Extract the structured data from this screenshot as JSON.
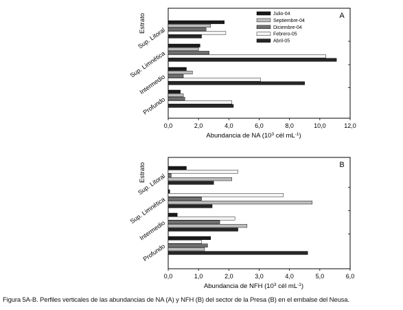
{
  "charts": [
    {
      "type": "bar",
      "orientation": "horizontal",
      "panel_label": "A",
      "y_axis_title": "Estrato",
      "xlabel_main": "Abundancia de NA (10",
      "xlabel_sup": "3",
      "xlabel_end": " cél mL",
      "xlabel_sup2": "-1",
      "xlabel_close": ")",
      "xlim": [
        0,
        12
      ],
      "xticks": [
        "0,0",
        "2,0",
        "4,0",
        "6,0",
        "8,0",
        "10,0",
        "12,0"
      ],
      "categories": [
        "Sup. Litoral",
        "Sup. Limnética",
        "Intermedio",
        "Profundo"
      ],
      "legend_position": "top-left",
      "series": [
        {
          "name": "Julio-04",
          "color": "#1a1a1a",
          "values": [
            3.7,
            2.1,
            1.2,
            0.8
          ]
        },
        {
          "name": "Septiembre-04",
          "color": "#bdbdbd",
          "values": [
            2.8,
            2.0,
            1.6,
            1.0
          ]
        },
        {
          "name": "Diciembre-04",
          "color": "#707070",
          "values": [
            2.5,
            2.7,
            1.0,
            1.1
          ]
        },
        {
          "name": "Febrero-05",
          "color": "#f4f4f4",
          "values": [
            3.8,
            10.4,
            6.1,
            4.2
          ]
        },
        {
          "name": "Abril-05",
          "color": "#262626",
          "values": [
            2.2,
            11.1,
            9.0,
            4.3
          ]
        }
      ]
    },
    {
      "type": "bar",
      "orientation": "horizontal",
      "panel_label": "B",
      "y_axis_title": "Estrato",
      "xlabel_main": "Abundancia de NFH (10",
      "xlabel_sup": "3",
      "xlabel_end": " cél mL",
      "xlabel_sup2": "-1",
      "xlabel_close": ")",
      "xlim": [
        0,
        6
      ],
      "xticks": [
        "0,0",
        "1,0",
        "2,0",
        "3,0",
        "4,0",
        "5,0",
        "6,0"
      ],
      "categories": [
        "Sup. Litoral",
        "Sup. Limnética",
        "Intermedio",
        "Profundo"
      ],
      "series": [
        {
          "name": "Julio-04",
          "color": "#1a1a1a",
          "values": [
            0.6,
            0.05,
            0.3,
            1.4
          ]
        },
        {
          "name": "Septiembre-04",
          "color": "#f4f4f4",
          "values": [
            2.3,
            3.8,
            2.2,
            1.1
          ]
        },
        {
          "name": "Diciembre-04",
          "color": "#707070",
          "values": [
            0.1,
            1.1,
            1.7,
            1.3
          ]
        },
        {
          "name": "Febrero-05",
          "color": "#bdbdbd",
          "values": [
            2.1,
            4.75,
            2.6,
            1.2
          ]
        },
        {
          "name": "Abril-05",
          "color": "#262626",
          "values": [
            1.5,
            1.45,
            2.3,
            4.6
          ]
        }
      ]
    }
  ],
  "caption": "Figura 5A-B. Perfiles verticales de las abundancias de NA (A) y NFH (B) del sector de la Presa (B) en el embalse del Neusa."
}
